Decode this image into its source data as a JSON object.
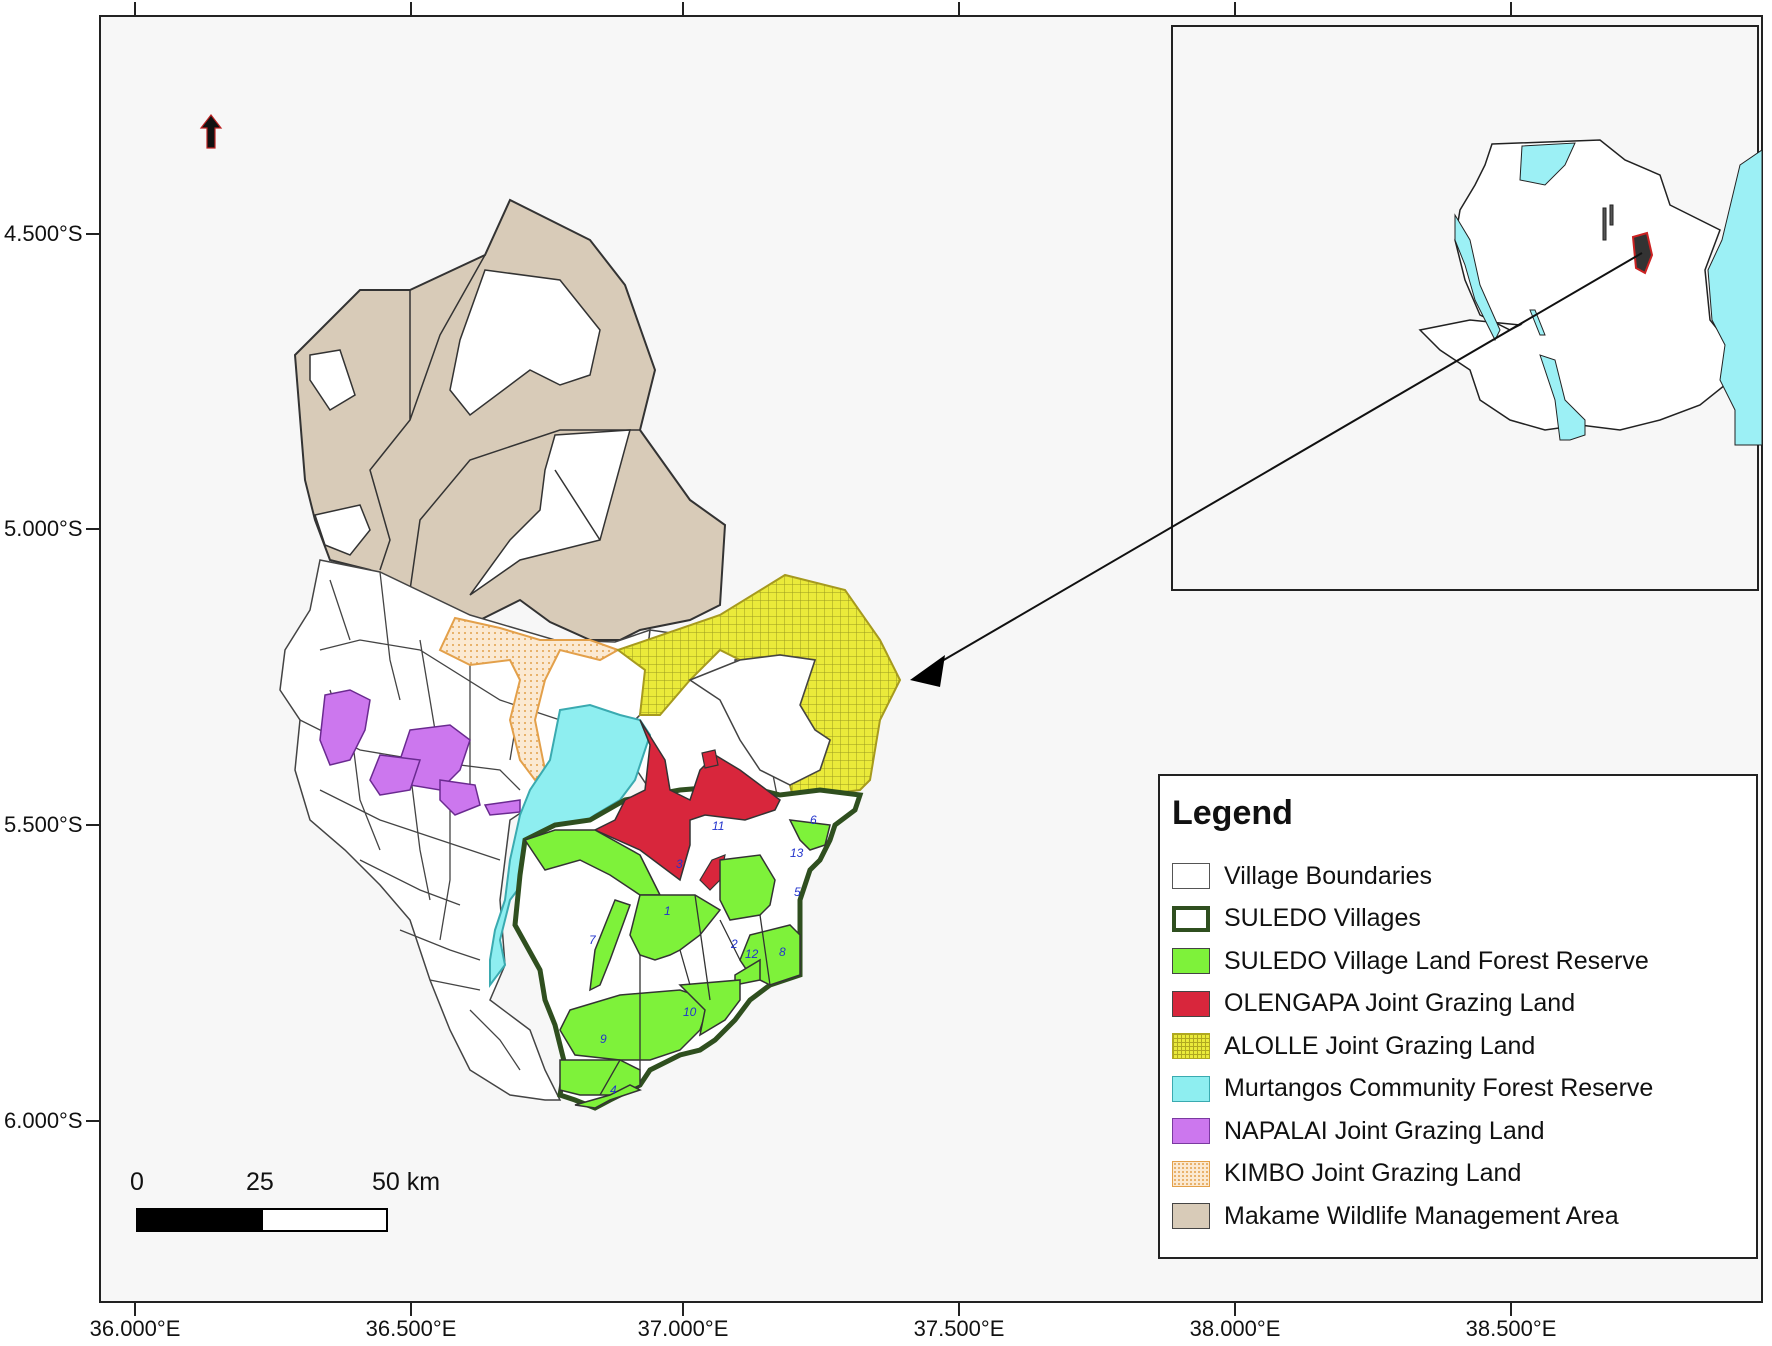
{
  "axes": {
    "x_ticks": [
      "36.000°E",
      "36.500°E",
      "37.000°E",
      "37.500°E",
      "38.000°E",
      "38.500°E"
    ],
    "y_ticks": [
      "4.500°S",
      "5.000°S",
      "5.500°S",
      "6.000°S"
    ]
  },
  "scale_bar": {
    "labels": [
      "0",
      "25",
      "50 km"
    ]
  },
  "north_arrow": {
    "icon": "north-arrow-icon"
  },
  "legend": {
    "title": "Legend",
    "items": [
      {
        "label": "Village Boundaries",
        "fill": "#ffffff",
        "stroke": "#555555",
        "pattern": "solid"
      },
      {
        "label": "SULEDO Villages",
        "fill": "#ffffff",
        "stroke": "#2f4f1f",
        "pattern": "thick-outline"
      },
      {
        "label": "SULEDO Village Land Forest Reserve",
        "fill": "#7ef23a",
        "stroke": "#444444",
        "pattern": "solid"
      },
      {
        "label": "OLENGAPA Joint Grazing Land",
        "fill": "#d8263c",
        "stroke": "#444444",
        "pattern": "solid"
      },
      {
        "label": "ALOLLE Joint Grazing Land",
        "fill": "#eaea3a",
        "stroke": "#b0a820",
        "pattern": "grid"
      },
      {
        "label": "Murtangos Community Forest Reserve",
        "fill": "#8eeef0",
        "stroke": "#3aaab0",
        "pattern": "solid"
      },
      {
        "label": "NAPALAI Joint Grazing Land",
        "fill": "#cc77ee",
        "stroke": "#7a3aa0",
        "pattern": "solid"
      },
      {
        "label": "KIMBO Joint Grazing Land",
        "fill": "#fbe9d2",
        "stroke": "#e3a04a",
        "pattern": "dots"
      },
      {
        "label": "Makame Wildlife Management Area",
        "fill": "#d8cbb8",
        "stroke": "#444444",
        "pattern": "solid"
      }
    ]
  },
  "village_numbers": [
    "1",
    "2",
    "3",
    "4",
    "5",
    "6",
    "7",
    "8",
    "9",
    "10",
    "11",
    "12",
    "13"
  ],
  "inset": {
    "description_icon": "tanzania-locator-map"
  },
  "colors": {
    "map_background": "#f7f7f7",
    "suledo_outline": "#2f4f1f",
    "forest_reserve": "#7ef23a",
    "olengapa": "#d8263c",
    "alolle": "#eaea3a",
    "murtangos": "#8eeef0",
    "napalai": "#cc77ee",
    "kimbo": "#fbe9d2",
    "makame": "#d8cbb8",
    "village_number_color": "#2233cc"
  }
}
